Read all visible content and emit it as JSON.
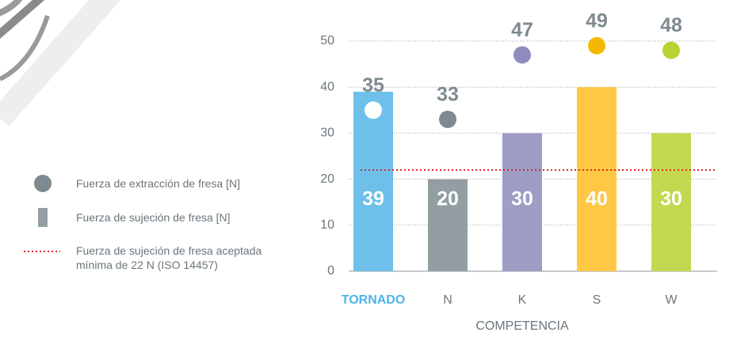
{
  "chart_data": {
    "type": "bar",
    "categories": [
      "TORNADO",
      "N",
      "K",
      "S",
      "W"
    ],
    "category_label_colors": [
      "#4fb3e6",
      "#6b767c",
      "#6b767c",
      "#6b767c",
      "#6b767c"
    ],
    "x_label": "COMPETENCIA",
    "series": [
      {
        "name": "Fuerza de extracción de fresa [N]",
        "type": "scatter",
        "color": "#7f8a90",
        "colors": [
          "#ffffff",
          "#7f8a90",
          "#8e8cbf",
          "#f5b800",
          "#b7d334"
        ],
        "values": [
          35,
          33,
          47,
          49,
          48
        ]
      },
      {
        "name": "Fuerza de sujeción de fresa [N]",
        "type": "bar",
        "color": "#939ea3",
        "colors": [
          "#6ec0ea",
          "#939ea3",
          "#9d9dc5",
          "#ffc844",
          "#c2d94f"
        ],
        "values": [
          39,
          20,
          30,
          40,
          30
        ]
      }
    ],
    "reference_line": {
      "name": "Fuerza de sujeción de fresa aceptada mínima de 22 N (ISO 14457)",
      "value": 22,
      "color": "#e0262c"
    },
    "ylim": [
      0,
      50
    ],
    "yticks": [
      0,
      10,
      20,
      30,
      40,
      50
    ],
    "grid": true
  }
}
